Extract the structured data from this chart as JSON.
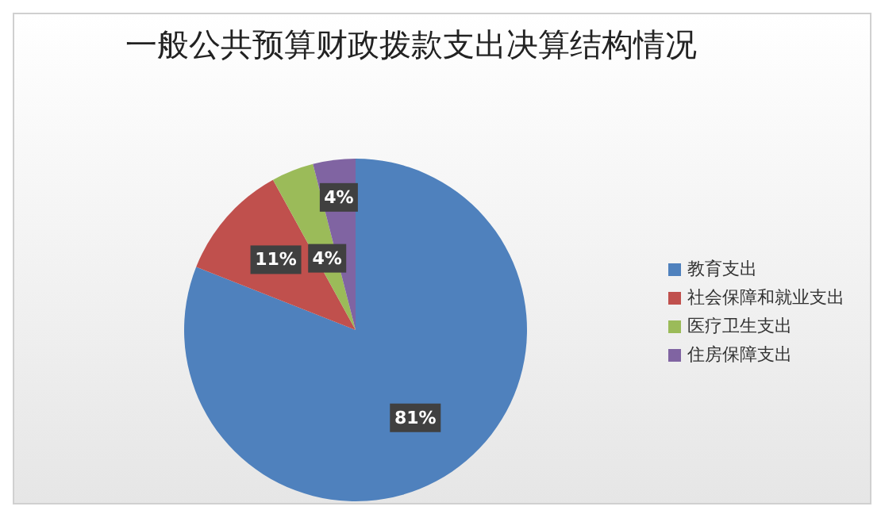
{
  "chart_data": {
    "type": "pie",
    "title": "一般公共预算财政拨款支出决算结构情况",
    "categories": [
      "教育支出",
      "社会保障和就业支出",
      "医疗卫生支出",
      "住房保障支出"
    ],
    "values": [
      81,
      11,
      4,
      4
    ],
    "value_labels": [
      "81%",
      "11%",
      "4%",
      "4%"
    ],
    "colors": [
      "#4f81bd",
      "#c0504d",
      "#9bbb59",
      "#8064a2"
    ],
    "legend": "right"
  }
}
